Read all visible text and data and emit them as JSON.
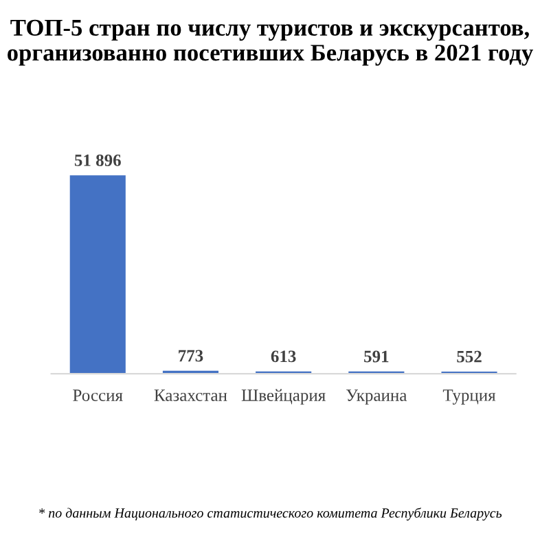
{
  "chart_data": {
    "type": "bar",
    "title": "ТОП-5 стран по числу туристов и экскурсантов, организованно посетивших Беларусь в 2021 году",
    "categories": [
      "Россия",
      "Казахстан",
      "Швейцария",
      "Украина",
      "Турция"
    ],
    "values": [
      51896,
      773,
      613,
      591,
      552
    ],
    "value_labels": [
      "51 896",
      "773",
      "613",
      "591",
      "552"
    ],
    "color": "#4472c4",
    "annotations": [
      "* по данным Национального статистического комитета Республики Беларусь"
    ]
  }
}
